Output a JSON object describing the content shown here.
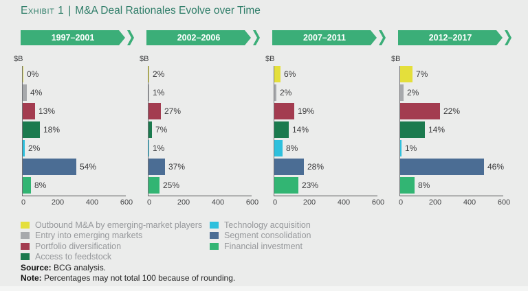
{
  "title": {
    "exhibit": "Exhibit 1",
    "separator": "|",
    "text": "M&A Deal Rationales Evolve over Time"
  },
  "colors": {
    "background": "#ebeceb",
    "banner_green": "#3bae78",
    "title_teal": "#2e7d68",
    "axis_line": "#48494b",
    "label_text": "#3a3a3c",
    "legend_text": "#96989b"
  },
  "chart_data": {
    "type": "bar",
    "orientation": "horizontal",
    "unit_label": "$B",
    "xlim": [
      0,
      600
    ],
    "xticks": [
      0,
      200,
      400,
      600
    ],
    "grid": false,
    "categories": [
      "Outbound M&A by emerging-market players",
      "Entry into emerging markets",
      "Portfolio diversification",
      "Access to feedstock",
      "Technology acquisition",
      "Segment consolidation",
      "Financial investment"
    ],
    "category_colors": [
      "#e4df3b",
      "#a7a9ac",
      "#a33c50",
      "#1b7a4e",
      "#2ec0dd",
      "#4b6d94",
      "#32b573"
    ],
    "series": [
      {
        "name": "1997–2001",
        "pct": [
          0,
          4,
          13,
          18,
          2,
          54,
          8
        ],
        "values_b": [
          2,
          24,
          72,
          100,
          11,
          310,
          47
        ]
      },
      {
        "name": "2002–2006",
        "pct": [
          2,
          1,
          27,
          7,
          1,
          37,
          25
        ],
        "values_b": [
          5,
          3,
          70,
          18,
          3,
          97,
          65
        ]
      },
      {
        "name": "2007–2011",
        "pct": [
          6,
          2,
          19,
          14,
          8,
          28,
          23
        ],
        "values_b": [
          35,
          12,
          115,
          85,
          48,
          170,
          140
        ]
      },
      {
        "name": "2012–2017",
        "pct": [
          7,
          2,
          22,
          14,
          1,
          46,
          8
        ],
        "values_b": [
          72,
          19,
          232,
          143,
          8,
          487,
          84
        ]
      }
    ]
  },
  "legend": {
    "columns": [
      [
        0,
        1,
        2,
        3
      ],
      [
        4,
        5,
        6
      ]
    ]
  },
  "footer": {
    "source_label": "Source:",
    "source_text": "BCG analysis.",
    "note_label": "Note:",
    "note_text": "Percentages may not total 100 because of rounding."
  }
}
